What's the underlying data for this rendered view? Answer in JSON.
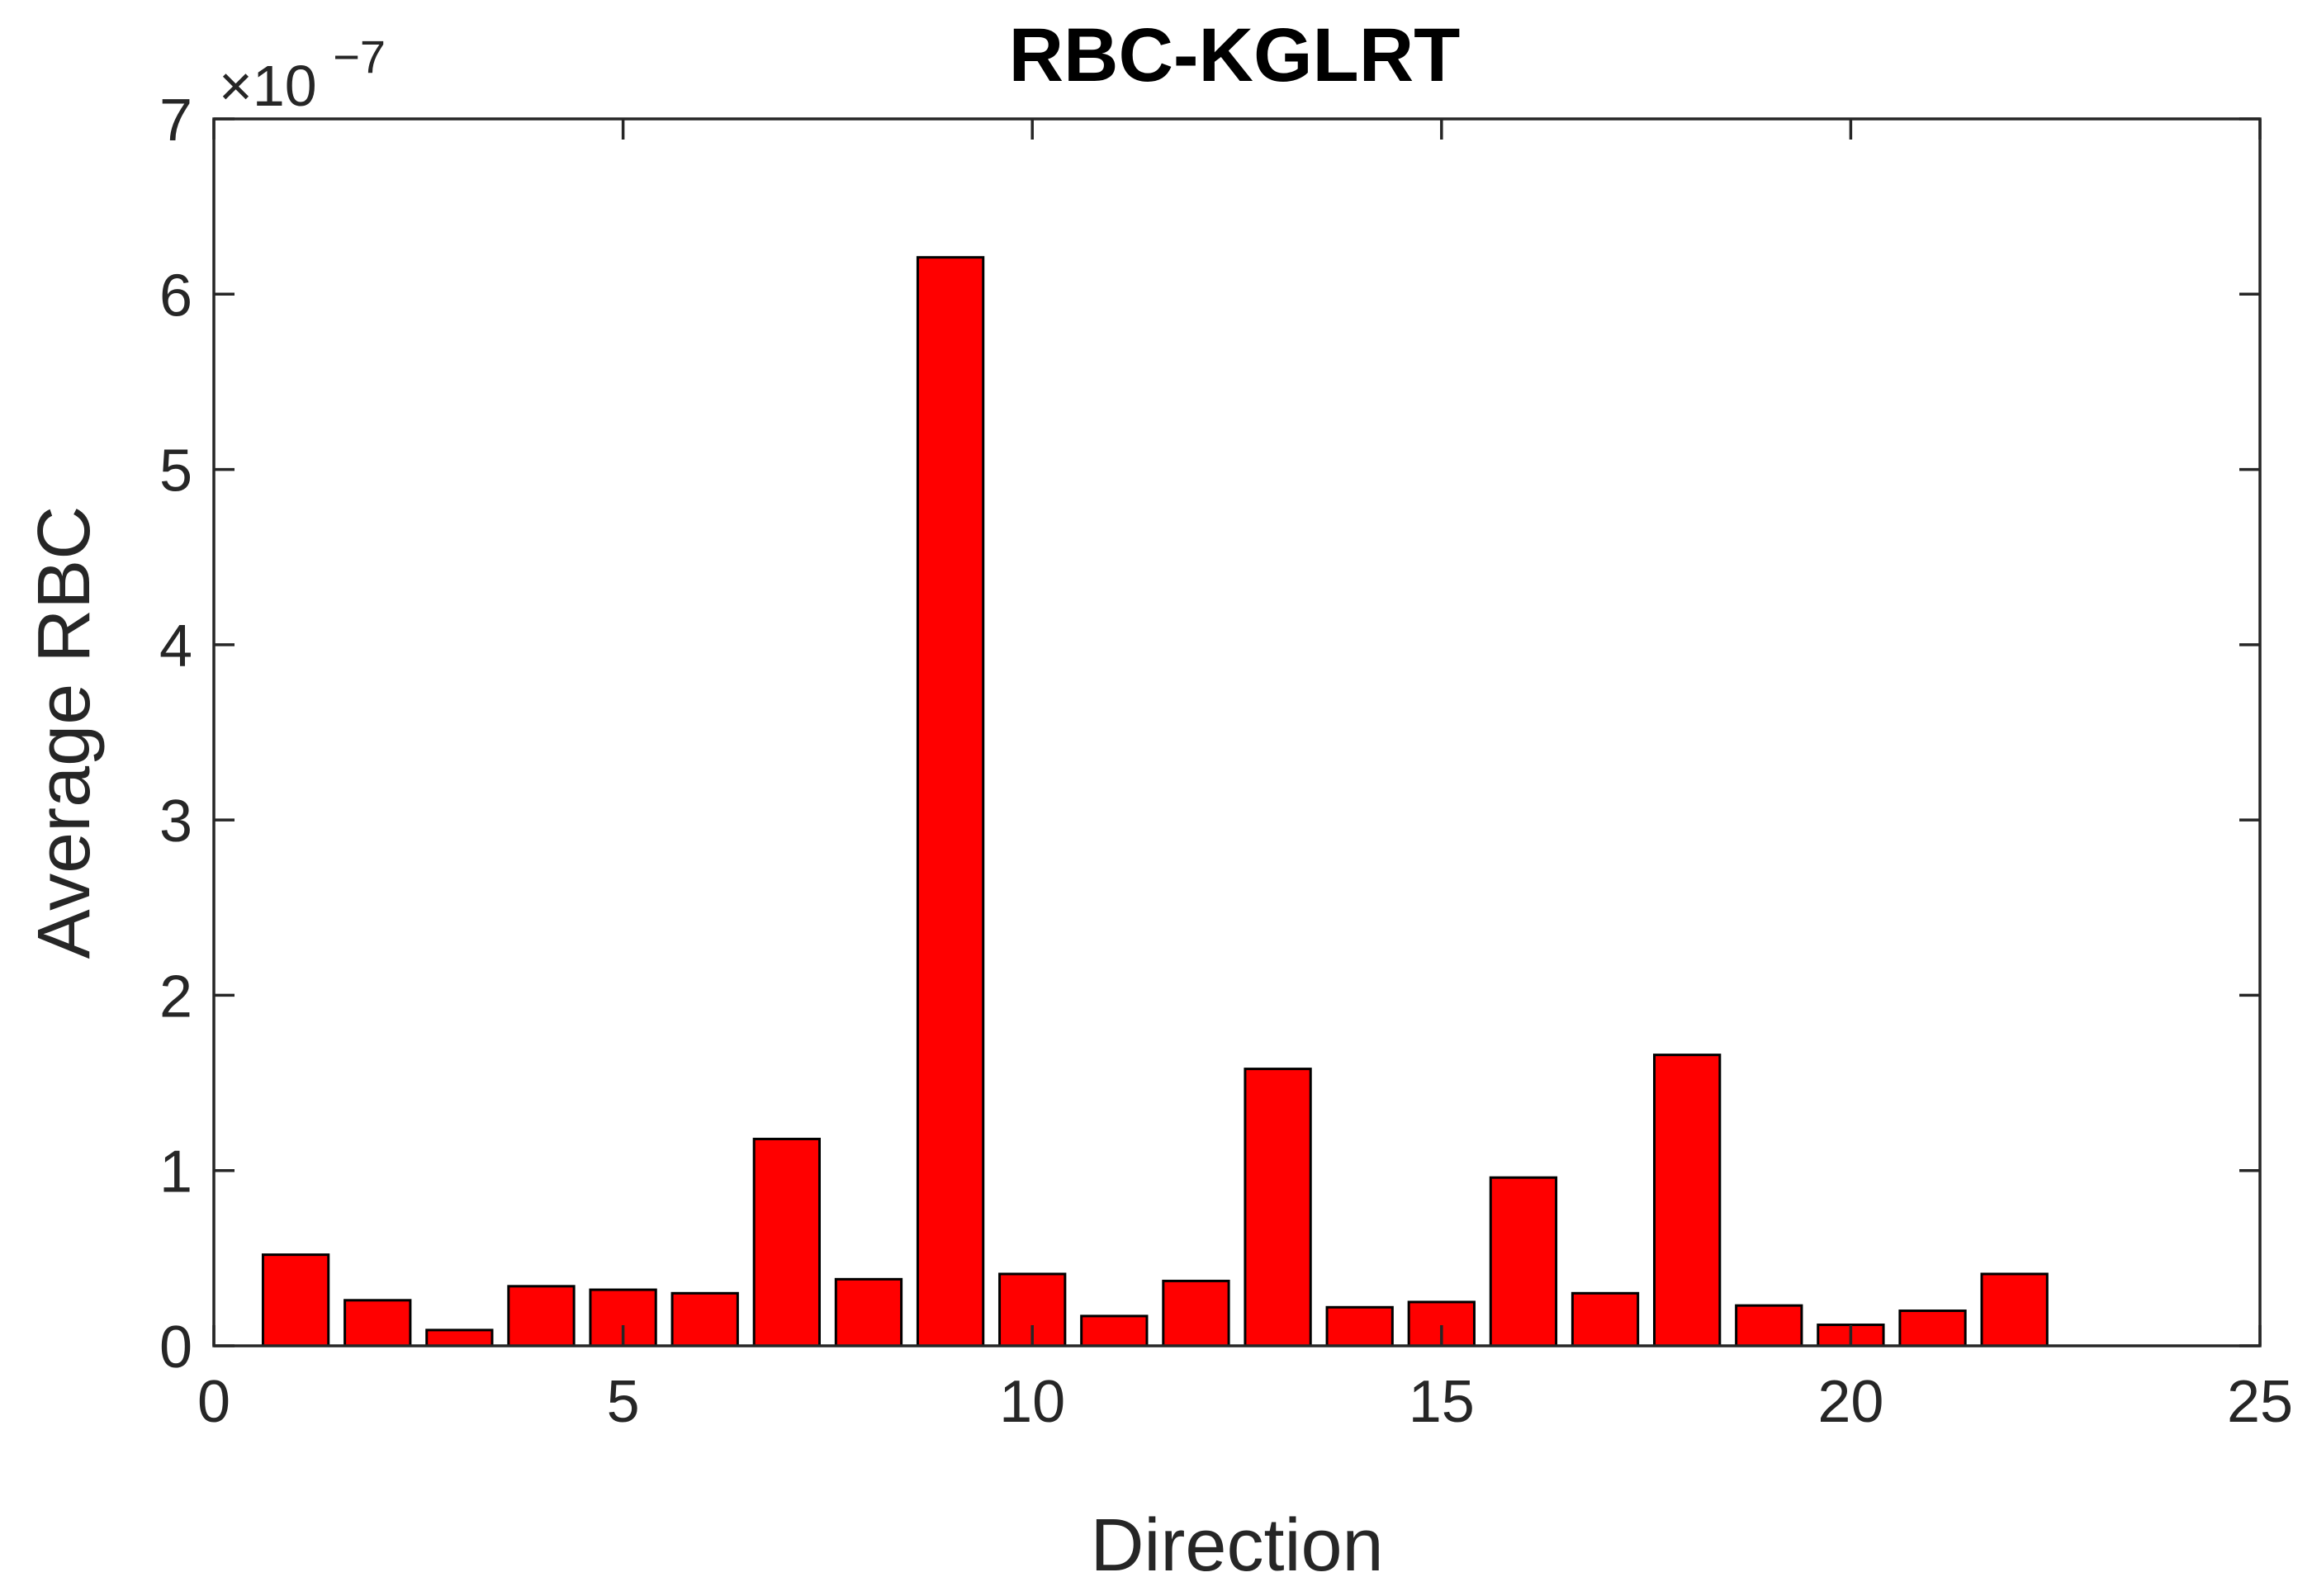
{
  "chart_data": {
    "type": "bar",
    "title": "RBC-KGLRT",
    "xlabel": "Direction",
    "ylabel": "Average RBC",
    "y_exponent_label": {
      "base": "×10",
      "exponent": "−7"
    },
    "xlim": [
      0,
      25
    ],
    "ylim": [
      0,
      7
    ],
    "xticks": [
      0,
      5,
      10,
      15,
      20,
      25
    ],
    "yticks": [
      0,
      1,
      2,
      3,
      4,
      5,
      6,
      7
    ],
    "grid": false,
    "legend": "none",
    "bar_color": "#ff0000",
    "bar_edge_color": "#000000",
    "x": [
      1,
      2,
      3,
      4,
      5,
      6,
      7,
      8,
      9,
      10,
      11,
      12,
      13,
      14,
      15,
      16,
      17,
      18,
      19,
      20,
      21,
      22
    ],
    "values": [
      0.52,
      0.26,
      0.09,
      0.34,
      0.32,
      0.3,
      1.18,
      0.38,
      6.21,
      0.41,
      0.17,
      0.37,
      1.58,
      0.22,
      0.25,
      0.96,
      0.3,
      1.66,
      0.23,
      0.12,
      0.2,
      0.41
    ],
    "unit_multiplier": "1e-7"
  }
}
